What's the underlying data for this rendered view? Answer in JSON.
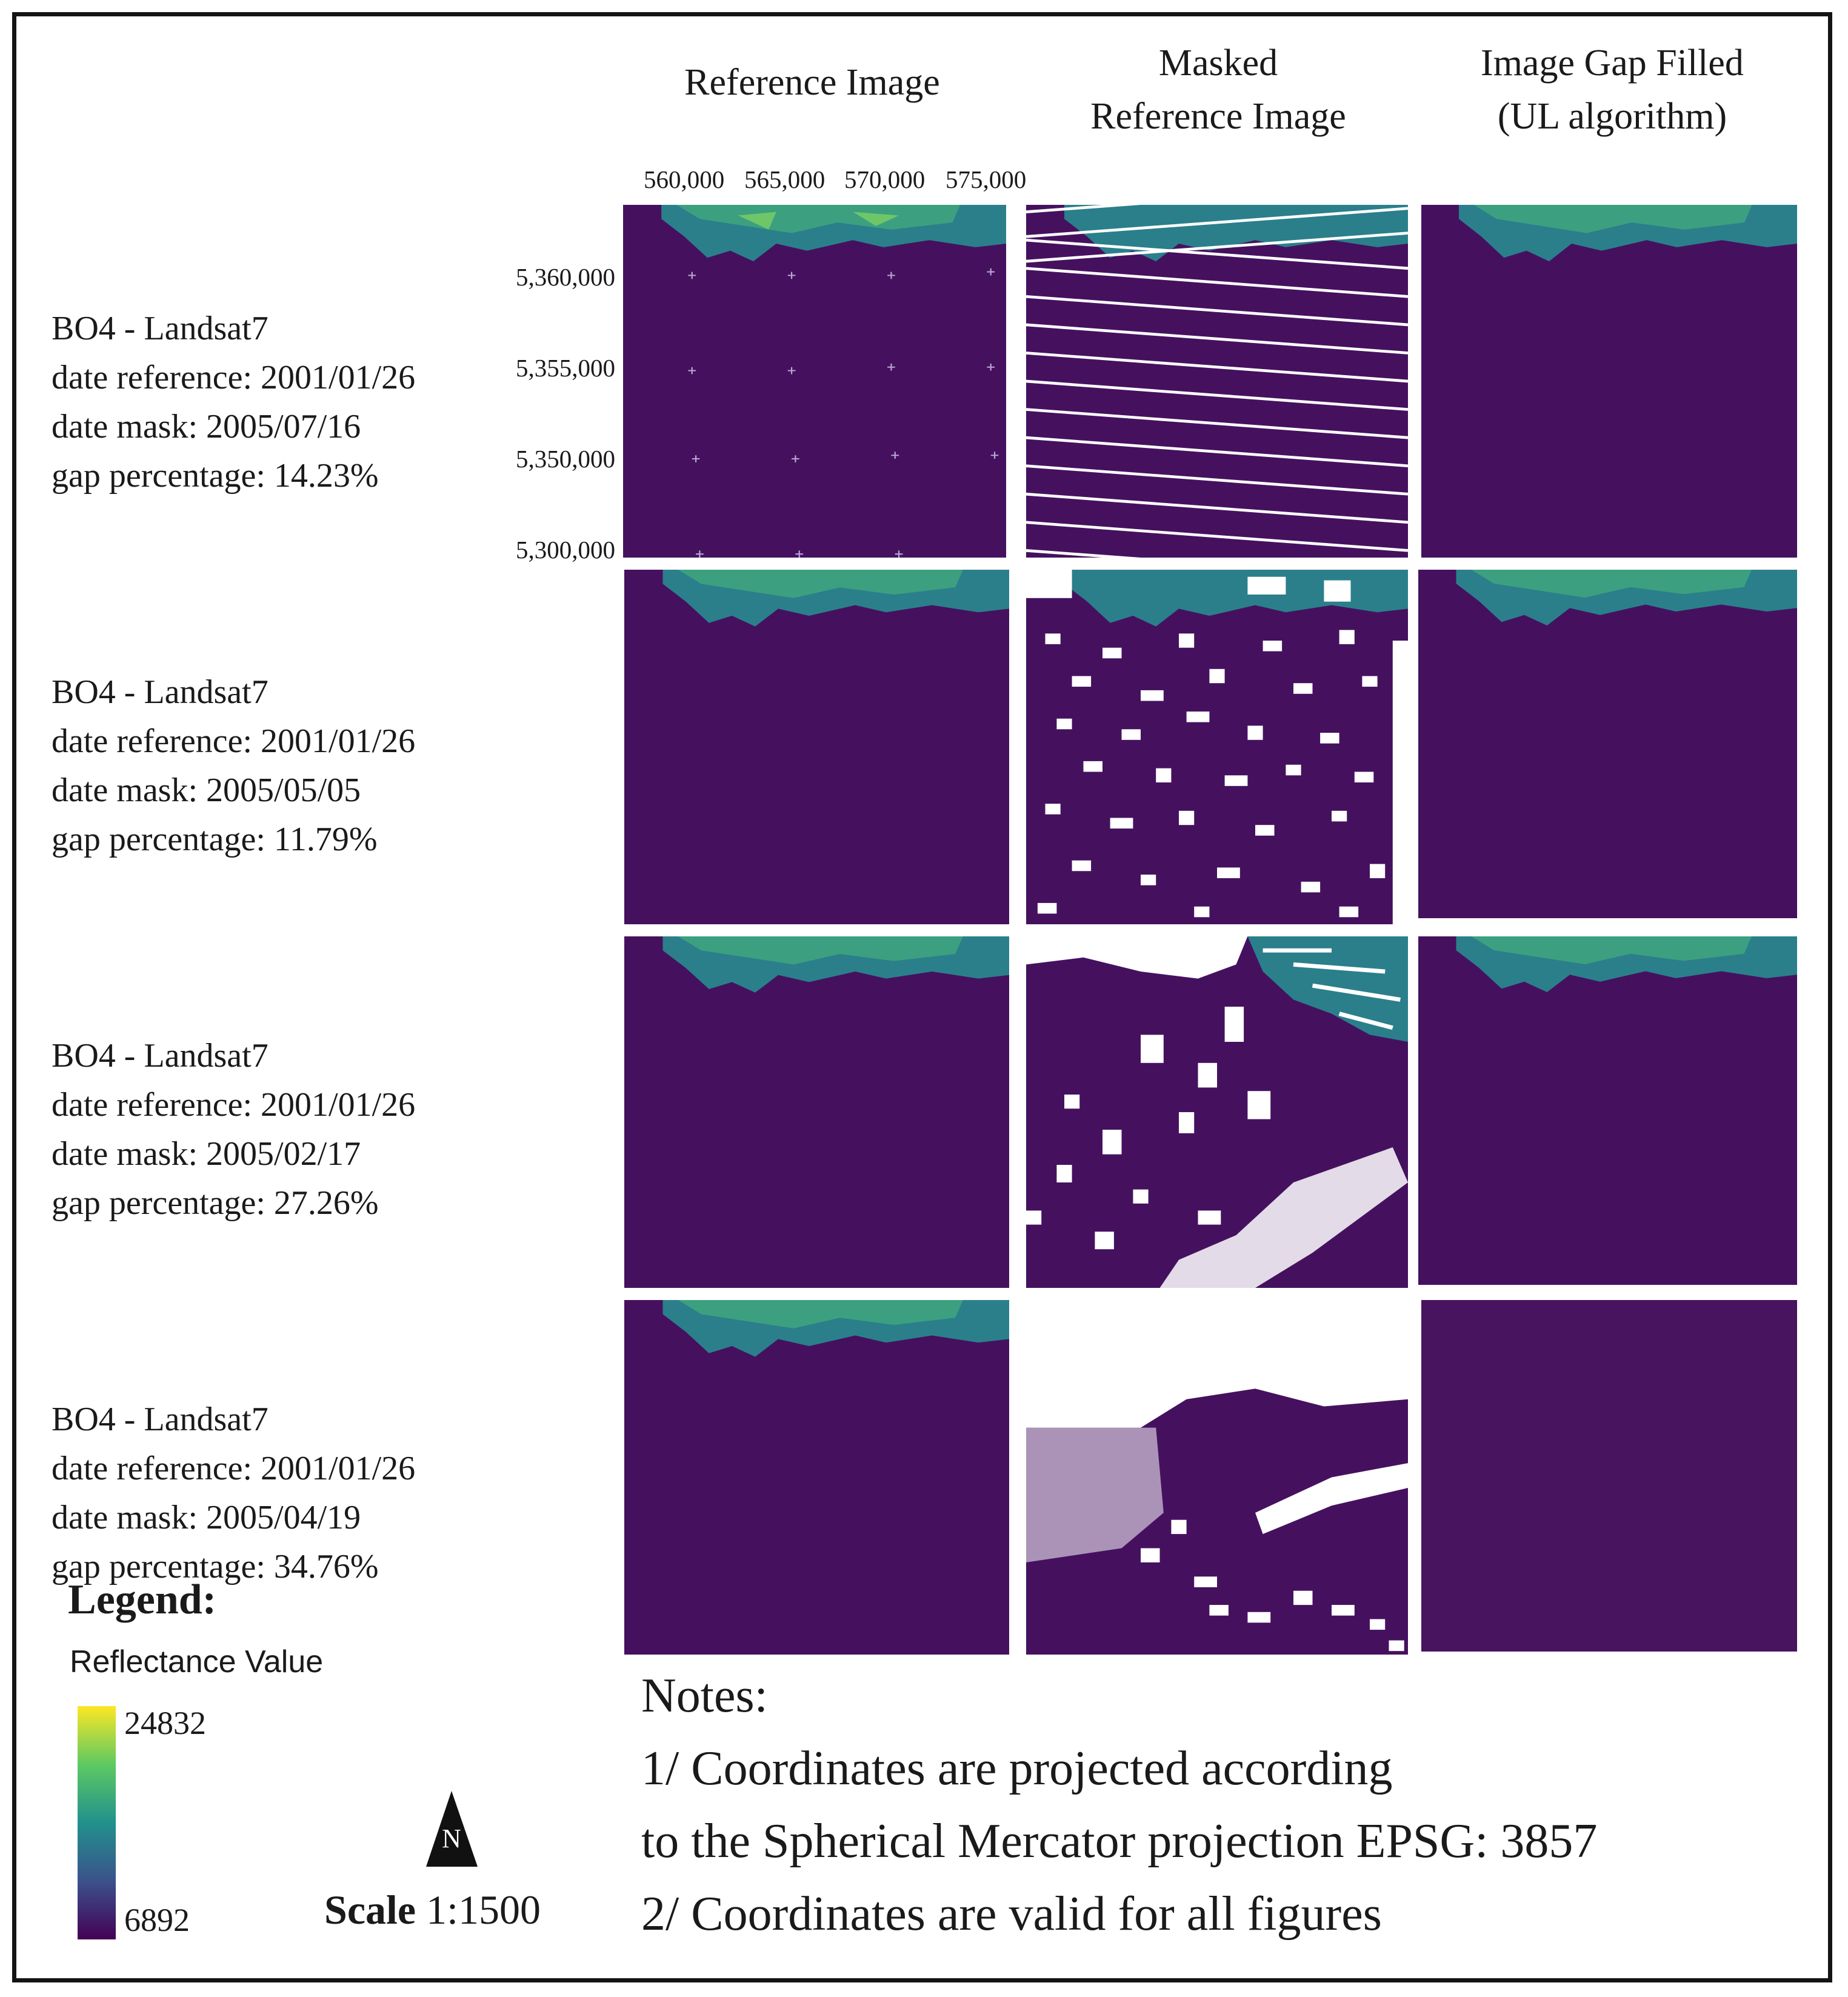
{
  "columns": {
    "reference": "Reference Image",
    "masked_line1": "Masked",
    "masked_line2": "Reference Image",
    "filled_line1": "Image Gap Filled",
    "filled_line2": "(UL algorithm)"
  },
  "x_axis_ticks": [
    "560,000",
    "565,000",
    "570,000",
    "575,000"
  ],
  "y_axis_ticks": [
    "5,360,000",
    "5,355,000",
    "5,350,000",
    "5,300,000"
  ],
  "rows": [
    {
      "band": "BO4 - Landsat7",
      "date_reference": "date reference: 2001/01/26",
      "date_mask": "date mask: 2005/07/16",
      "gap": "gap percentage: 14.23%"
    },
    {
      "band": "BO4 - Landsat7",
      "date_reference": "date reference: 2001/01/26",
      "date_mask": "date mask: 2005/05/05",
      "gap": "gap percentage: 11.79%"
    },
    {
      "band": "BO4 - Landsat7",
      "date_reference": "date reference: 2001/01/26",
      "date_mask": "date mask: 2005/02/17",
      "gap": "gap percentage: 27.26%"
    },
    {
      "band": "BO4 - Landsat7",
      "date_reference": "date reference: 2001/01/26",
      "date_mask": "date mask: 2005/04/19",
      "gap": "gap percentage: 34.76%"
    }
  ],
  "legend": {
    "title": "Legend:",
    "subtitle": "Reflectance Value",
    "max": "24832",
    "min": "6892",
    "colors": {
      "low": "#440154",
      "mid": "#21918c",
      "high": "#fde725",
      "background": "#45115f",
      "mask": "#ffffff"
    }
  },
  "north_arrow": {
    "label": "N",
    "icon": "north-arrow-icon"
  },
  "scale": {
    "label": "Scale",
    "value": "1:1500"
  },
  "notes": {
    "title": "Notes:",
    "line1": "1/ Coordinates are projected according",
    "line2": "to the Spherical Mercator projection EPSG: 3857",
    "line3": "2/ Coordinates are valid for all figures"
  }
}
